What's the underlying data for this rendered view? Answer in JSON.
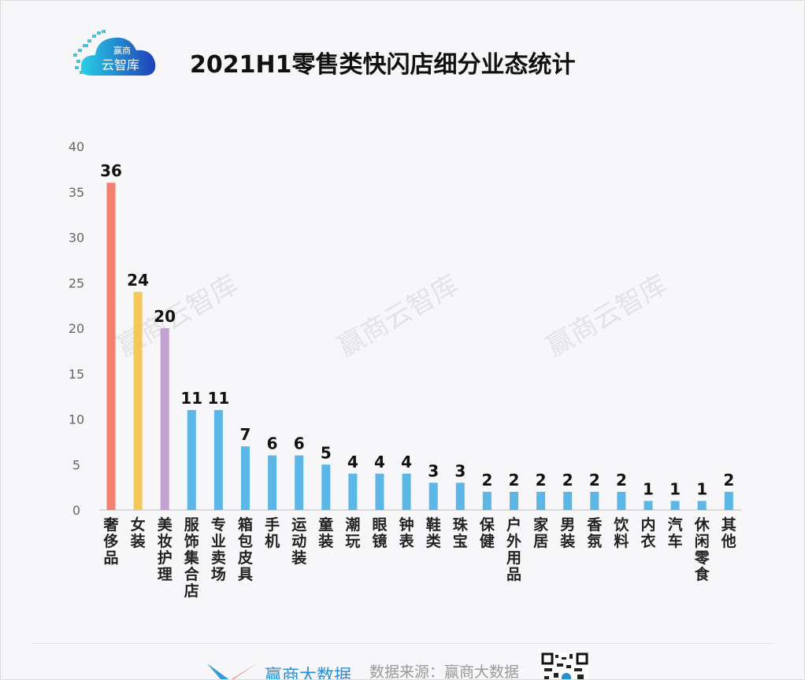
{
  "logo": {
    "line1": "赢商",
    "line2": "云智库"
  },
  "watermark": "赢商云智库",
  "footer": {
    "brand": "赢商大数据",
    "source": "数据来源：赢商大数据"
  },
  "chart_data": {
    "type": "bar",
    "title": "2021H1零售类快闪店细分业态统计",
    "categories": [
      "奢侈品",
      "女装",
      "美妆护理",
      "服饰集合店",
      "专业卖场",
      "箱包皮具",
      "手机",
      "运动装",
      "童装",
      "潮玩",
      "眼镜",
      "钟表",
      "鞋类",
      "珠宝",
      "保健",
      "户外用品",
      "家居",
      "男装",
      "香氛",
      "饮料",
      "内衣",
      "汽车",
      "休闲零食",
      "其他"
    ],
    "values": [
      36,
      24,
      20,
      11,
      11,
      7,
      6,
      6,
      5,
      4,
      4,
      4,
      3,
      3,
      2,
      2,
      2,
      2,
      2,
      2,
      1,
      1,
      1,
      2
    ],
    "colors": [
      "#f2806f",
      "#f3c95d",
      "#c3a1d3",
      "#5cb6e6",
      "#5cb6e6",
      "#5cb6e6",
      "#5cb6e6",
      "#5cb6e6",
      "#5cb6e6",
      "#5cb6e6",
      "#5cb6e6",
      "#5cb6e6",
      "#5cb6e6",
      "#5cb6e6",
      "#5cb6e6",
      "#5cb6e6",
      "#5cb6e6",
      "#5cb6e6",
      "#5cb6e6",
      "#5cb6e6",
      "#5cb6e6",
      "#5cb6e6",
      "#5cb6e6",
      "#5cb6e6"
    ],
    "ylim": [
      0,
      40
    ],
    "yticks": [
      0,
      5,
      10,
      15,
      20,
      25,
      30,
      35,
      40
    ],
    "grid": false,
    "data_labels": true
  }
}
